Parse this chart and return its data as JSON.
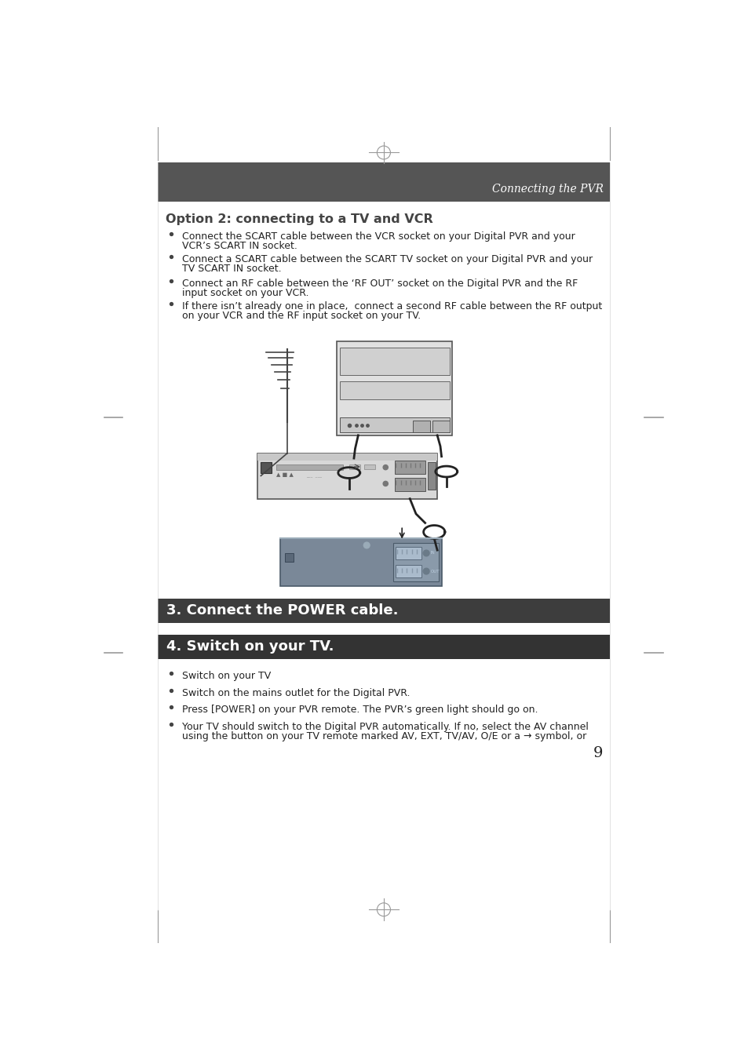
{
  "bg_color": "#ffffff",
  "header_bg": "#555555",
  "header_text_color": "#ffffff",
  "header_italic_text": "Connecting the PVR",
  "section1_title": "Option 2: connecting to a TV and VCR",
  "section1_color": "#444444",
  "bullets_section1": [
    [
      "Connect the SCART cable between the VCR socket on your Digital PVR and your",
      "VCR’s SCART IN socket."
    ],
    [
      "Connect a SCART cable between the SCART TV socket on your Digital PVR and your",
      "TV SCART IN socket."
    ],
    [
      "Connect an RF cable between the ‘RF OUT’ socket on the Digital PVR and the RF",
      "input socket on your VCR."
    ],
    [
      "If there isn’t already one in place,  connect a second RF cable between the RF output",
      "on your VCR and the RF input socket on your TV."
    ]
  ],
  "section2_title": "3. Connect the POWER cable.",
  "section2_bg": "#3d3d3d",
  "section3_title": "4. Switch on your TV.",
  "section3_bg": "#333333",
  "bullets_section3": [
    [
      "Switch on your TV"
    ],
    [
      "Switch on the mains outlet for the Digital PVR."
    ],
    [
      "Press [POWER] on your PVR remote. The PVR’s green light should go on."
    ],
    [
      "Your TV should switch to the Digital PVR automatically. If no, select the AV channel",
      "using the button on your TV remote marked AV, EXT, TV/AV, O/E or a → symbol, or"
    ]
  ],
  "page_number": "9",
  "text_color": "#222222",
  "bullet_color": "#444444",
  "mark_color": "#999999"
}
